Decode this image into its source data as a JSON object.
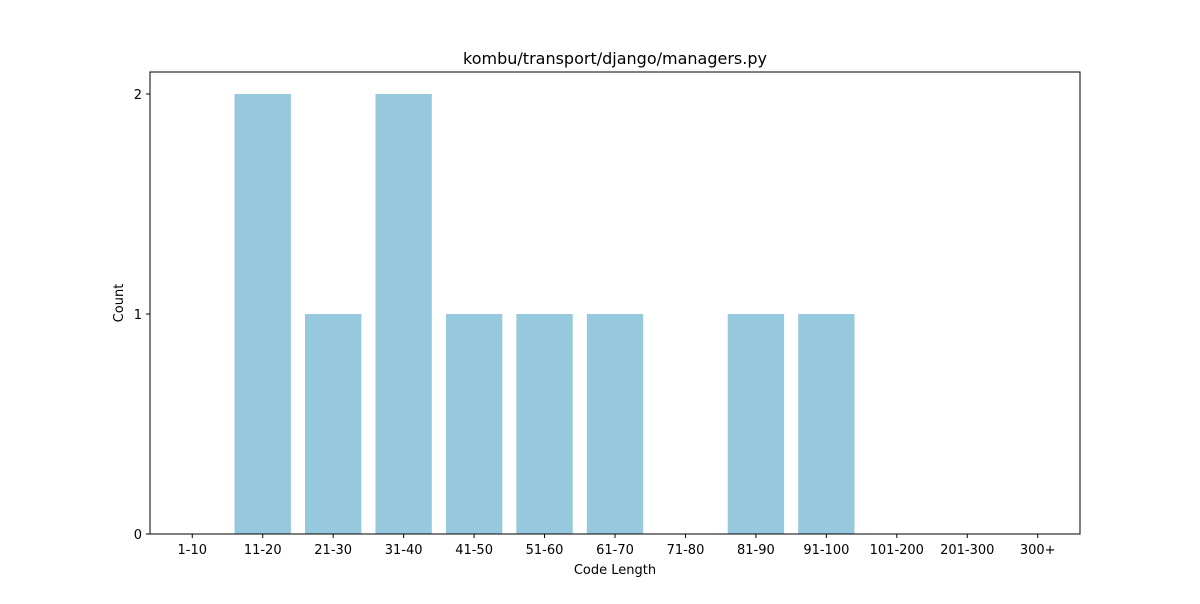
{
  "chart_data": {
    "type": "bar",
    "title": "kombu/transport/django/managers.py",
    "xlabel": "Code Length",
    "ylabel": "Count",
    "categories": [
      "1-10",
      "11-20",
      "21-30",
      "31-40",
      "41-50",
      "51-60",
      "61-70",
      "71-80",
      "81-90",
      "91-100",
      "101-200",
      "201-300",
      "300+"
    ],
    "values": [
      0,
      2,
      1,
      2,
      1,
      1,
      1,
      0,
      1,
      1,
      0,
      0,
      0
    ],
    "ylim": [
      0,
      2.1
    ],
    "yticks": [
      "0",
      "1",
      "2"
    ],
    "bar_color": "#96c9dd",
    "grid": false,
    "legend": "none"
  }
}
